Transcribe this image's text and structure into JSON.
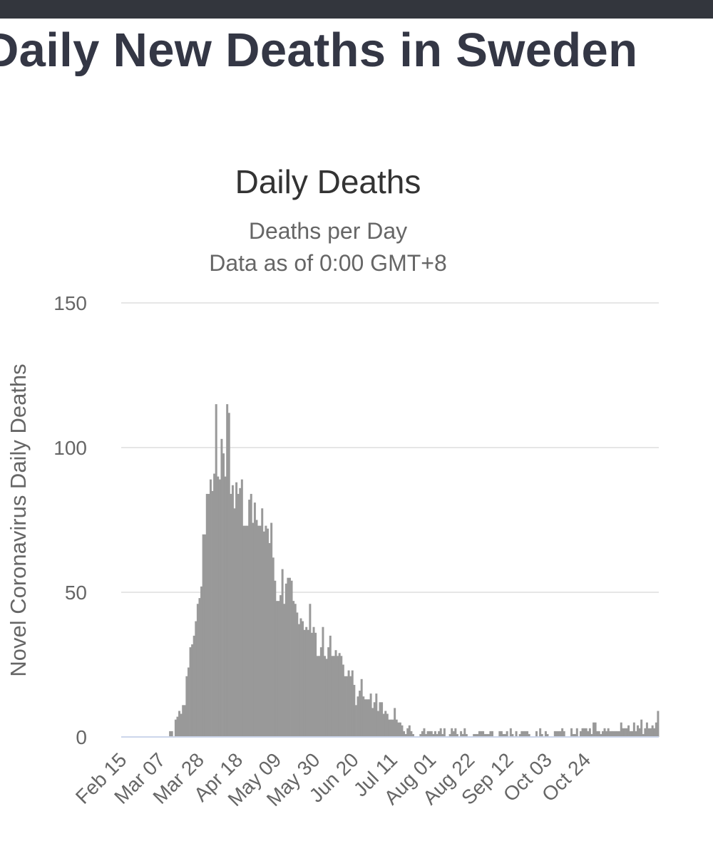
{
  "header": {
    "title": "Daily New Deaths in Sweden"
  },
  "chart_data": {
    "type": "bar",
    "title": "Daily Deaths",
    "subtitle": [
      "Deaths per Day",
      "Data as of 0:00 GMT+8"
    ],
    "ylabel": "Novel Coronavirus Daily Deaths",
    "xlabel": "",
    "ylim": [
      0,
      150
    ],
    "yticks": [
      0,
      50,
      100,
      150
    ],
    "x_start_date": "2020-02-15",
    "xticks": [
      "Feb 15",
      "Mar 07",
      "Mar 28",
      "Apr 18",
      "May 09",
      "May 30",
      "Jun 20",
      "Jul 11",
      "Aug 01",
      "Aug 22",
      "Sep 12",
      "Oct 03",
      "Oct 24"
    ],
    "grid": true,
    "legend": "none",
    "bar_color": "#999999",
    "values": [
      0,
      0,
      0,
      0,
      0,
      0,
      0,
      0,
      0,
      0,
      0,
      0,
      0,
      0,
      0,
      0,
      0,
      0,
      0,
      0,
      0,
      0,
      0,
      0,
      0,
      0,
      2,
      2,
      0,
      6,
      7,
      9,
      8,
      11,
      11,
      21,
      24,
      31,
      32,
      35,
      40,
      46,
      48,
      52,
      70,
      70,
      84,
      84,
      89,
      85,
      91,
      115,
      90,
      89,
      103,
      98,
      90,
      115,
      112,
      84,
      87,
      79,
      88,
      84,
      86,
      89,
      73,
      73,
      73,
      82,
      84,
      74,
      81,
      75,
      73,
      73,
      79,
      71,
      73,
      72,
      67,
      74,
      62,
      54,
      47,
      47,
      49,
      58,
      46,
      53,
      55,
      55,
      54,
      47,
      46,
      43,
      39,
      41,
      40,
      37,
      38,
      37,
      46,
      36,
      38,
      36,
      28,
      28,
      31,
      38,
      28,
      27,
      31,
      35,
      28,
      28,
      30,
      28,
      29,
      28,
      25,
      21,
      21,
      23,
      21,
      23,
      18,
      11,
      14,
      16,
      20,
      14,
      13,
      13,
      13,
      15,
      10,
      12,
      15,
      9,
      12,
      12,
      8,
      9,
      8,
      6,
      6,
      6,
      10,
      6,
      5,
      5,
      4,
      2,
      1,
      3,
      4,
      2,
      1,
      0,
      0,
      0,
      1,
      2,
      3,
      1,
      2,
      2,
      2,
      1,
      2,
      1,
      2,
      3,
      1,
      3,
      0,
      0,
      1,
      3,
      2,
      3,
      1,
      0,
      2,
      1,
      3,
      1,
      0,
      0,
      0,
      1,
      1,
      1,
      2,
      2,
      2,
      1,
      1,
      1,
      2,
      2,
      0,
      0,
      0,
      2,
      2,
      1,
      1,
      2,
      0,
      3,
      1,
      0,
      2,
      0,
      1,
      2,
      2,
      2,
      2,
      1,
      0,
      0,
      0,
      2,
      0,
      3,
      1,
      0,
      2,
      1,
      0,
      0,
      0,
      2,
      2,
      2,
      2,
      3,
      2,
      0,
      0,
      0,
      3,
      1,
      1,
      3,
      0,
      2,
      3,
      3,
      3,
      2,
      3,
      1,
      5,
      5,
      2,
      2,
      1,
      2,
      3,
      2,
      3,
      2,
      2,
      2,
      2,
      2,
      2,
      5,
      3,
      3,
      3,
      4,
      2,
      2,
      5,
      2,
      4,
      3,
      6,
      1,
      3,
      5,
      3,
      3,
      4,
      3,
      5,
      9
    ]
  }
}
